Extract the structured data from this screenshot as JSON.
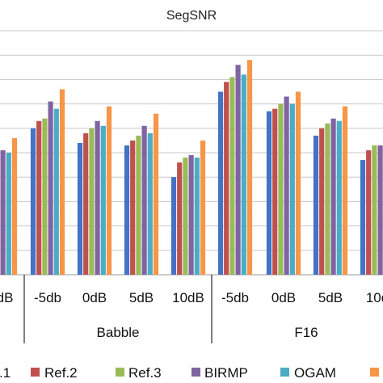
{
  "chart_data": {
    "type": "bar",
    "title": "SegSNR",
    "y_gridlines": 10,
    "grid": true,
    "legend_position": "bottom",
    "groups": [
      {
        "label": "",
        "categories": [
          "dB"
        ]
      },
      {
        "label": "Babble",
        "categories": [
          "-5db",
          "0dB",
          "5dB",
          "10dB"
        ]
      },
      {
        "label": "F16",
        "categories": [
          "-5db",
          "0dB",
          "5dB",
          "10d"
        ]
      }
    ],
    "categories": [
      "dB",
      "-5db",
      "0dB",
      "5dB",
      "10dB",
      "-5db",
      "0dB",
      "5dB",
      "10d"
    ],
    "series": [
      {
        "name": ".1",
        "color": "#4472C4",
        "values": [
          5.1,
          6.0,
          5.4,
          5.3,
          4.0,
          7.5,
          6.7,
          5.7,
          4.7
        ]
      },
      {
        "name": "Ref.2",
        "color": "#C0504D",
        "values": [
          null,
          6.3,
          5.8,
          5.5,
          4.6,
          7.9,
          6.8,
          6.0,
          5.1
        ]
      },
      {
        "name": "Ref.3",
        "color": "#9BBB59",
        "values": [
          null,
          6.4,
          6.0,
          5.7,
          4.8,
          8.1,
          7.0,
          6.2,
          5.3
        ]
      },
      {
        "name": "BIRMP",
        "color": "#8064A2",
        "values": [
          5.1,
          7.1,
          6.3,
          6.1,
          4.9,
          8.6,
          7.3,
          6.4,
          5.3
        ]
      },
      {
        "name": "OGAM",
        "color": "#4BACC6",
        "values": [
          5.0,
          6.8,
          6.1,
          5.8,
          4.8,
          8.2,
          7.0,
          6.3,
          5.2
        ]
      },
      {
        "name": "",
        "color": "#F79646",
        "values": [
          5.6,
          7.6,
          6.9,
          6.6,
          5.5,
          8.8,
          7.5,
          6.9,
          5.8
        ]
      }
    ]
  }
}
